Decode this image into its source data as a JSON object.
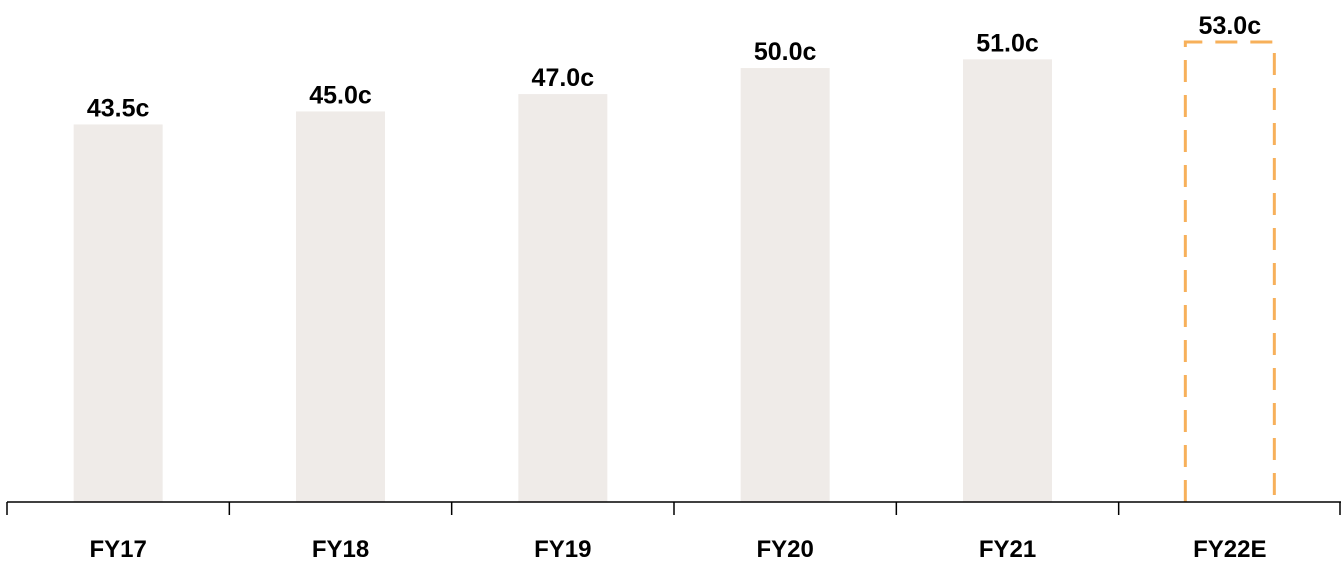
{
  "chart_data": {
    "type": "bar",
    "categories": [
      "FY17",
      "FY18",
      "FY19",
      "FY20",
      "FY21",
      "FY22E"
    ],
    "values": [
      43.5,
      45.0,
      47.0,
      50.0,
      51.0,
      53.0
    ],
    "data_labels": [
      "43.5c",
      "45.0c",
      "47.0c",
      "50.0c",
      "51.0c",
      "53.0c"
    ],
    "estimated": [
      false,
      false,
      false,
      false,
      false,
      true
    ],
    "title": "",
    "xlabel": "",
    "ylabel": "",
    "ylim": [
      0,
      53.0
    ],
    "grid": false,
    "legend": "none",
    "colors": {
      "bar_fill": "#efebe8",
      "estimate_outline": "#f7b05a",
      "axis": "#000000",
      "text": "#000000"
    }
  }
}
